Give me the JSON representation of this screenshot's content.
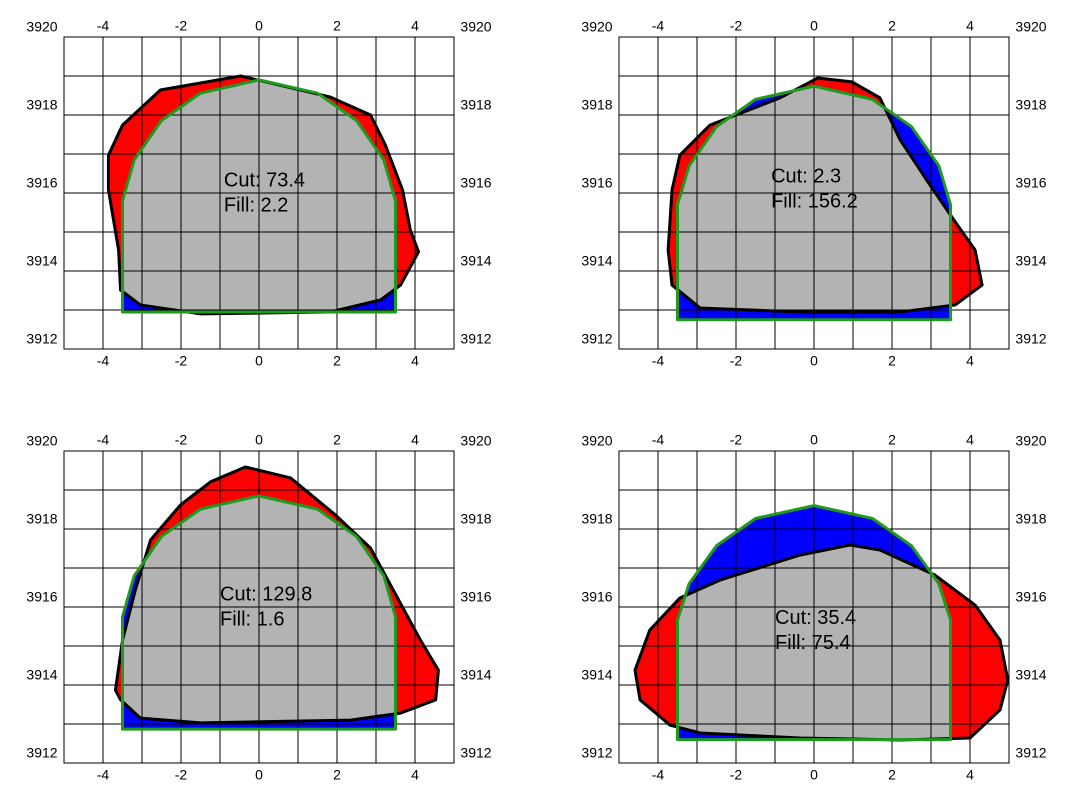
{
  "chart_data": [
    {
      "type": "section",
      "annotations": [
        "Cut: 73.4",
        "Fill: 2.2"
      ],
      "xlim": [
        -5,
        5
      ],
      "ylim": [
        3912,
        3920
      ],
      "xticks": [
        -4,
        -2,
        0,
        2,
        4
      ],
      "yticks": [
        3912,
        3914,
        3916,
        3918,
        3920
      ],
      "grid": true,
      "grid_step": 1,
      "cut_color": "#ff0000",
      "fill_color": "#0000ff",
      "overlap_color": "#b3b3b3",
      "series": [
        {
          "color": "#1e9a1e",
          "x": [
            -3.5,
            -3.5,
            -3.2,
            -2.5,
            -1.5,
            0,
            1.5,
            2.5,
            3.2,
            3.5,
            3.5
          ],
          "values": [
            3912.95,
            3915.8,
            3916.85,
            3917.86,
            3918.56,
            3918.9,
            3918.56,
            3917.86,
            3916.85,
            3915.8,
            3912.95
          ]
        },
        {
          "color": "#000000",
          "x": [
            -3.86,
            -3.86,
            -3.5,
            -2.53,
            -0.47,
            1.83,
            2.86,
            3.24,
            3.68,
            3.88,
            4.09,
            3.63,
            3.12,
            1.83,
            -1.5,
            -3.04,
            -3.55,
            -3.6
          ],
          "values": [
            3916.08,
            3916.97,
            3917.74,
            3918.64,
            3919.0,
            3918.46,
            3918.0,
            3917.23,
            3916.08,
            3915.05,
            3914.49,
            3913.64,
            3913.26,
            3912.95,
            3912.9,
            3913.13,
            3913.51,
            3914.54
          ]
        }
      ]
    },
    {
      "type": "section",
      "annotations": [
        "Cut: 2.3",
        "Fill: 156.2"
      ],
      "xlim": [
        -5,
        5
      ],
      "ylim": [
        3912,
        3920
      ],
      "xticks": [
        -4,
        -2,
        0,
        2,
        4
      ],
      "yticks": [
        3912,
        3914,
        3916,
        3918,
        3920
      ],
      "grid": true,
      "grid_step": 1,
      "cut_color": "#ff0000",
      "fill_color": "#0000ff",
      "overlap_color": "#b3b3b3",
      "series": [
        {
          "color": "#1e9a1e",
          "x": [
            -3.5,
            -3.5,
            -3.2,
            -2.5,
            -1.5,
            0,
            1.5,
            2.5,
            3.2,
            3.5,
            3.5
          ],
          "values": [
            3912.75,
            3915.7,
            3916.7,
            3917.7,
            3918.4,
            3918.74,
            3918.4,
            3917.7,
            3916.7,
            3915.7,
            3912.75
          ]
        },
        {
          "color": "#000000",
          "x": [
            0.1,
            0.97,
            1.69,
            2.21,
            2.97,
            3.62,
            4.13,
            4.31,
            3.62,
            2.21,
            -0.36,
            -2.92,
            -3.64,
            -3.74,
            -3.64,
            -3.44,
            -2.67,
            -0.87
          ],
          "values": [
            3918.95,
            3918.85,
            3918.44,
            3917.36,
            3916.21,
            3915.26,
            3914.54,
            3913.64,
            3913.13,
            3912.95,
            3912.95,
            3913.05,
            3913.64,
            3914.54,
            3916.08,
            3916.97,
            3917.74,
            3918.44
          ]
        }
      ]
    },
    {
      "type": "section",
      "annotations": [
        "Cut: 129.8",
        "Fill: 1.6"
      ],
      "xlim": [
        -5,
        5
      ],
      "ylim": [
        3912,
        3920
      ],
      "xticks": [
        -4,
        -2,
        0,
        2,
        4
      ],
      "yticks": [
        3912,
        3914,
        3916,
        3918,
        3920
      ],
      "grid": true,
      "grid_step": 1,
      "cut_color": "#ff0000",
      "fill_color": "#0000ff",
      "overlap_color": "#b3b3b3",
      "series": [
        {
          "color": "#1e9a1e",
          "x": [
            -3.5,
            -3.5,
            -3.2,
            -2.5,
            -1.5,
            0,
            1.5,
            2.5,
            3.2,
            3.5,
            3.5
          ],
          "values": [
            3912.87,
            3915.75,
            3916.8,
            3917.81,
            3918.51,
            3918.85,
            3918.51,
            3917.81,
            3916.8,
            3915.75,
            3912.87
          ]
        },
        {
          "color": "#000000",
          "x": [
            -0.35,
            0.81,
            1.96,
            2.86,
            3.58,
            4.14,
            4.6,
            4.53,
            3.63,
            2.35,
            -1.5,
            -3.04,
            -3.55,
            -3.68,
            -3.5,
            -3.17,
            -2.78,
            -2.01,
            -1.24
          ],
          "values": [
            3919.59,
            3919.31,
            3918.36,
            3917.51,
            3916.18,
            3915.15,
            3914.38,
            3913.62,
            3913.28,
            3913.1,
            3913.03,
            3913.15,
            3913.62,
            3913.87,
            3915.15,
            3916.44,
            3917.72,
            3918.62,
            3919.21
          ]
        }
      ]
    },
    {
      "type": "section",
      "annotations": [
        "Cut: 35.4",
        "Fill: 75.4"
      ],
      "xlim": [
        -5,
        5
      ],
      "ylim": [
        3912,
        3920
      ],
      "xticks": [
        -4,
        -2,
        0,
        2,
        4
      ],
      "yticks": [
        3912,
        3914,
        3916,
        3918,
        3920
      ],
      "grid": true,
      "grid_step": 1,
      "cut_color": "#ff0000",
      "fill_color": "#0000ff",
      "overlap_color": "#b3b3b3",
      "series": [
        {
          "color": "#1e9a1e",
          "x": [
            -3.5,
            -3.5,
            -3.2,
            -2.5,
            -1.5,
            0,
            1.5,
            2.5,
            3.2,
            3.5,
            3.5
          ],
          "values": [
            3912.6,
            3915.67,
            3916.6,
            3917.57,
            3918.27,
            3918.6,
            3918.27,
            3917.57,
            3916.6,
            3915.67,
            3912.6
          ]
        },
        {
          "color": "#000000",
          "x": [
            -3.44,
            -2.41,
            -0.36,
            0.92,
            1.69,
            3.1,
            4.13,
            4.77,
            4.97,
            4.77,
            4.0,
            2.21,
            -0.36,
            -2.92,
            -3.69,
            -4.46,
            -4.59,
            -4.21
          ],
          "values": [
            3916.23,
            3916.69,
            3917.33,
            3917.59,
            3917.46,
            3916.82,
            3916.05,
            3915.15,
            3914.13,
            3913.36,
            3912.64,
            3912.59,
            3912.64,
            3912.77,
            3912.97,
            3913.62,
            3914.38,
            3915.41
          ]
        }
      ]
    }
  ]
}
